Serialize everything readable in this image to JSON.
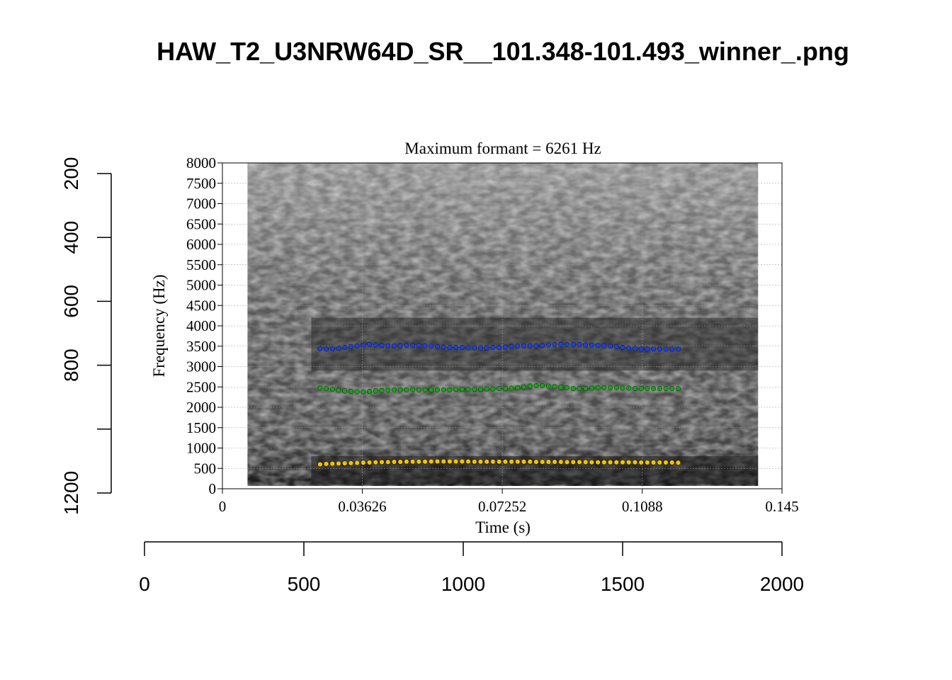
{
  "page": {
    "title": "HAW_T2_U3NRW64D_SR__101.348-101.493_winner_.png"
  },
  "outer_axes": {
    "x_ticks": [
      "0",
      "500",
      "1000",
      "1500",
      "2000"
    ],
    "x_range": [
      0,
      2000
    ],
    "y_ticks": [
      "200",
      "400",
      "600",
      "800",
      "1200"
    ],
    "y_tick_values": [
      200,
      400,
      600,
      800,
      1200
    ],
    "y_range": [
      200,
      1200
    ],
    "y_inverted": true
  },
  "chart_data": {
    "type": "scatter",
    "title": "Maximum formant  =  6261 Hz",
    "xlabel": "Time (s)",
    "ylabel": "Frequency (Hz)",
    "xlim": [
      0,
      0.145
    ],
    "ylim": [
      0,
      8000
    ],
    "x_ticks": [
      "0",
      "0.03626",
      "0.07252",
      "0.1088",
      "0.145"
    ],
    "x_tick_values": [
      0,
      0.03626,
      0.07252,
      0.1088,
      0.145
    ],
    "y_ticks": [
      "0",
      "500",
      "1000",
      "1500",
      "2000",
      "2500",
      "3000",
      "3500",
      "4000",
      "4500",
      "5000",
      "5500",
      "6000",
      "6500",
      "7000",
      "7500",
      "8000"
    ],
    "y_tick_values": [
      0,
      500,
      1000,
      1500,
      2000,
      2500,
      3000,
      3500,
      4000,
      4500,
      5000,
      5500,
      6000,
      6500,
      7000,
      7500,
      8000
    ],
    "grid": true,
    "spectrogram_time_range": [
      0.0065,
      0.1388
    ],
    "series": [
      {
        "color": "#f5c400",
        "x": [
          0.0253,
          0.0269,
          0.0285,
          0.0301,
          0.0317,
          0.0333,
          0.0349,
          0.0365,
          0.0381,
          0.0397,
          0.0413,
          0.0429,
          0.0445,
          0.0461,
          0.0477,
          0.0493,
          0.0509,
          0.0525,
          0.0541,
          0.0557,
          0.0573,
          0.0589,
          0.0605,
          0.0621,
          0.0637,
          0.0653,
          0.0669,
          0.0685,
          0.0701,
          0.0717,
          0.0733,
          0.0749,
          0.0765,
          0.0781,
          0.0797,
          0.0813,
          0.0829,
          0.0845,
          0.0861,
          0.0877,
          0.0893,
          0.0909,
          0.0925,
          0.0941,
          0.0957,
          0.0973,
          0.0989,
          0.1005,
          0.1021,
          0.1037,
          0.1053,
          0.1069,
          0.1085,
          0.1101,
          0.1117,
          0.1133,
          0.1149,
          0.1165,
          0.1181
        ],
        "y": [
          600,
          610,
          615,
          620,
          625,
          630,
          635,
          640,
          645,
          650,
          655,
          655,
          660,
          660,
          665,
          665,
          665,
          665,
          670,
          670,
          670,
          670,
          670,
          670,
          670,
          665,
          665,
          665,
          665,
          665,
          665,
          665,
          665,
          665,
          665,
          660,
          660,
          660,
          660,
          660,
          655,
          655,
          655,
          655,
          650,
          650,
          650,
          650,
          650,
          650,
          650,
          650,
          645,
          645,
          645,
          645,
          645,
          645,
          640
        ]
      },
      {
        "color": "#1aa01a",
        "x": [
          0.0253,
          0.0269,
          0.0285,
          0.0301,
          0.0317,
          0.0333,
          0.0349,
          0.0365,
          0.0381,
          0.0397,
          0.0413,
          0.0429,
          0.0445,
          0.0461,
          0.0477,
          0.0493,
          0.0509,
          0.0525,
          0.0541,
          0.0557,
          0.0573,
          0.0589,
          0.0605,
          0.0621,
          0.0637,
          0.0653,
          0.0669,
          0.0685,
          0.0701,
          0.0717,
          0.0733,
          0.0749,
          0.0765,
          0.0781,
          0.0797,
          0.0813,
          0.0829,
          0.0845,
          0.0861,
          0.0877,
          0.0893,
          0.0909,
          0.0925,
          0.0941,
          0.0957,
          0.0973,
          0.0989,
          0.1005,
          0.1021,
          0.1037,
          0.1053,
          0.1069,
          0.1085,
          0.1101,
          0.1117,
          0.1133,
          0.1149,
          0.1165,
          0.1181
        ],
        "y": [
          2470,
          2460,
          2440,
          2420,
          2400,
          2390,
          2380,
          2380,
          2390,
          2400,
          2410,
          2420,
          2430,
          2430,
          2430,
          2430,
          2430,
          2430,
          2430,
          2430,
          2430,
          2430,
          2440,
          2440,
          2440,
          2440,
          2440,
          2450,
          2450,
          2460,
          2460,
          2470,
          2480,
          2500,
          2520,
          2530,
          2530,
          2520,
          2510,
          2490,
          2480,
          2460,
          2460,
          2460,
          2470,
          2480,
          2480,
          2480,
          2480,
          2470,
          2470,
          2460,
          2460,
          2460,
          2460,
          2460,
          2460,
          2460,
          2460
        ]
      },
      {
        "color": "#1f3fd8",
        "x": [
          0.0253,
          0.0269,
          0.0285,
          0.0301,
          0.0317,
          0.0333,
          0.0349,
          0.0365,
          0.0381,
          0.0397,
          0.0413,
          0.0429,
          0.0445,
          0.0461,
          0.0477,
          0.0493,
          0.0509,
          0.0525,
          0.0541,
          0.0557,
          0.0573,
          0.0589,
          0.0605,
          0.0621,
          0.0637,
          0.0653,
          0.0669,
          0.0685,
          0.0701,
          0.0717,
          0.0733,
          0.0749,
          0.0765,
          0.0781,
          0.0797,
          0.0813,
          0.0829,
          0.0845,
          0.0861,
          0.0877,
          0.0893,
          0.0909,
          0.0925,
          0.0941,
          0.0957,
          0.0973,
          0.0989,
          0.1005,
          0.1021,
          0.1037,
          0.1053,
          0.1069,
          0.1085,
          0.1101,
          0.1117,
          0.1133,
          0.1149,
          0.1165,
          0.1181
        ],
        "y": [
          3440,
          3430,
          3440,
          3450,
          3470,
          3490,
          3510,
          3530,
          3540,
          3530,
          3520,
          3510,
          3510,
          3510,
          3520,
          3520,
          3520,
          3510,
          3500,
          3490,
          3480,
          3470,
          3470,
          3470,
          3460,
          3460,
          3460,
          3460,
          3470,
          3470,
          3480,
          3490,
          3500,
          3510,
          3510,
          3510,
          3520,
          3530,
          3540,
          3540,
          3540,
          3540,
          3540,
          3530,
          3530,
          3520,
          3510,
          3500,
          3490,
          3470,
          3450,
          3440,
          3430,
          3430,
          3430,
          3430,
          3430,
          3430,
          3430
        ]
      }
    ]
  }
}
